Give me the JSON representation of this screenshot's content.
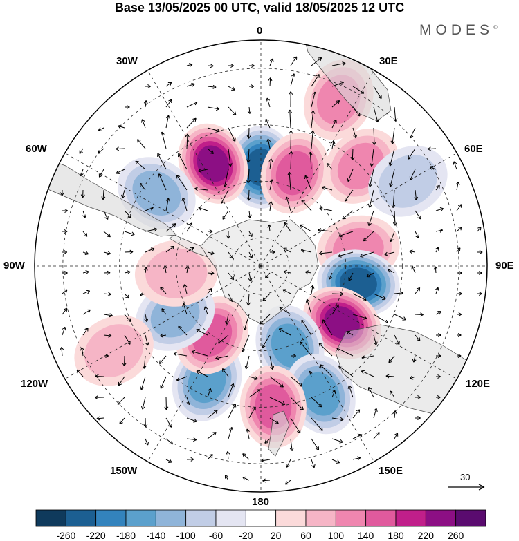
{
  "title": "Base 13/05/2025 00 UTC, valid 18/05/2025 12 UTC",
  "logo": {
    "text": "MODES",
    "mark": "©"
  },
  "longitude_labels": {
    "lon_0": "0",
    "lon_30e": "30E",
    "lon_60e": "60E",
    "lon_90e": "90E",
    "lon_120e": "120E",
    "lon_150e": "150E",
    "lon_180": "180",
    "lon_150w": "150W",
    "lon_120w": "120W",
    "lon_90w": "90W",
    "lon_60w": "60W",
    "lon_30w": "30W"
  },
  "reference_vector": {
    "value": "30"
  },
  "colorbar": {
    "ticks": [
      "-260",
      "-220",
      "-180",
      "-140",
      "-100",
      "-60",
      "-20",
      "20",
      "60",
      "100",
      "140",
      "180",
      "220",
      "260"
    ],
    "colors": [
      "#0f3a5c",
      "#1c5f92",
      "#3383bd",
      "#5ba0cc",
      "#8fb4d9",
      "#c1cde6",
      "#e4e5f2",
      "#ffffff",
      "#fbdada",
      "#f6b5c6",
      "#ef86af",
      "#e05a9d",
      "#c01f8a",
      "#8c0f84",
      "#5a0b6f"
    ]
  },
  "anomaly_cells": [
    {
      "lon": 0,
      "lat": -55,
      "value": -220
    },
    {
      "lon": 20,
      "lat": -55,
      "value": 160
    },
    {
      "lon": -25,
      "lat": -50,
      "value": 220
    },
    {
      "lon": 45,
      "lat": -40,
      "value": 120
    },
    {
      "lon": -55,
      "lat": -45,
      "value": -110
    },
    {
      "lon": 80,
      "lat": -55,
      "value": 130
    },
    {
      "lon": 100,
      "lat": -55,
      "value": -230
    },
    {
      "lon": 125,
      "lat": -55,
      "value": 240
    },
    {
      "lon": 160,
      "lat": -60,
      "value": -170
    },
    {
      "lon": 155,
      "lat": -40,
      "value": -140
    },
    {
      "lon": 175,
      "lat": -40,
      "value": 140
    },
    {
      "lon": -155,
      "lat": -45,
      "value": -150
    },
    {
      "lon": -145,
      "lat": -60,
      "value": 170
    },
    {
      "lon": -120,
      "lat": -55,
      "value": -110
    },
    {
      "lon": -95,
      "lat": -60,
      "value": 70
    },
    {
      "lon": 25,
      "lat": -25,
      "value": 120
    },
    {
      "lon": 60,
      "lat": -30,
      "value": -90
    },
    {
      "lon": -120,
      "lat": -30,
      "value": 80
    }
  ]
}
